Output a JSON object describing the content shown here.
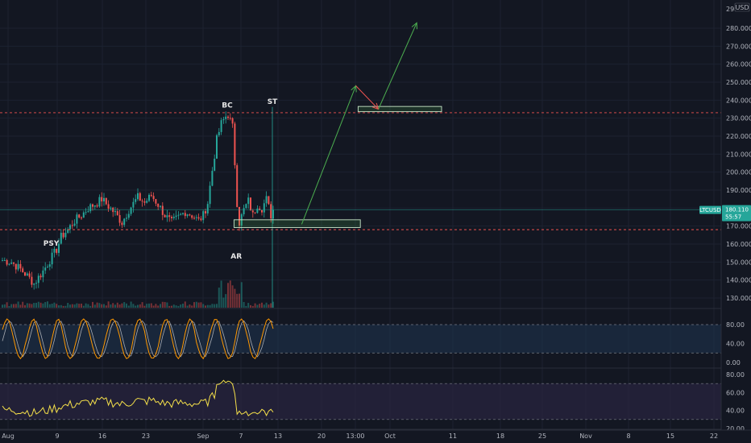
{
  "chart_data": {
    "type": "candlestick",
    "symbol": "LTCUSD",
    "currency": "USD",
    "last_price": "180.110",
    "countdown": "55:57",
    "colors": {
      "up": "#26a69a",
      "down": "#ef5350",
      "background": "#131722",
      "stoch_k": "#ff9800",
      "stoch_d": "#e5e5e5",
      "rsi": "#f5e04a",
      "arrow_up": "#4caf50",
      "arrow_down": "#ef5350",
      "stoch_band": "#1f3550",
      "rsi_band": "#2a2540"
    },
    "price_axis": {
      "ticks": [
        "130.000",
        "140.000",
        "150.000",
        "160.000",
        "170.000",
        "180.000",
        "190.000",
        "200.000",
        "210.000",
        "220.000",
        "230.000",
        "240.000",
        "250.000",
        "260.000",
        "270.000",
        "280.000"
      ],
      "top_partial": "29",
      "ylim": [
        124,
        298
      ]
    },
    "time_axis": {
      "labels": [
        "Aug",
        "9",
        "16",
        "23",
        "Sep",
        "7",
        "13",
        "20",
        "13:00",
        "Oct",
        "11",
        "18",
        "25",
        "Nov",
        "8",
        "15",
        "22"
      ]
    },
    "stoch_axis": {
      "ticks": [
        "80.00",
        "40.00",
        "0.00"
      ],
      "band": [
        20,
        80
      ]
    },
    "rsi_axis": {
      "ticks": [
        "80.00",
        "60.00",
        "40.00",
        "20.00"
      ],
      "band": [
        30,
        70
      ]
    },
    "levels": {
      "resistance": 233,
      "support": 168
    },
    "annotations": [
      {
        "label": "PSY",
        "price": 159,
        "bar": 22
      },
      {
        "label": "BC",
        "price": 236,
        "bar": 100
      },
      {
        "label": "AR",
        "price": 152,
        "bar": 104
      },
      {
        "label": "ST",
        "price": 238,
        "bar": 120
      }
    ],
    "zones": [
      {
        "name": "accumulation-range",
        "price_low": 169.2,
        "price_high": 173.5,
        "from_bar": 103,
        "to_bar": 159
      },
      {
        "name": "target-zone",
        "price_low": 233.6,
        "price_high": 236.5,
        "from_bar": 158,
        "to_bar": 195
      }
    ],
    "projection": [
      {
        "bar": 133,
        "price": 171
      },
      {
        "bar": 157,
        "price": 248
      },
      {
        "bar": 167,
        "price": 235
      },
      {
        "bar": 184,
        "price": 283
      }
    ],
    "ohlc_anchors": [
      [
        0,
        151
      ],
      [
        4,
        150
      ],
      [
        8,
        146
      ],
      [
        12,
        141
      ],
      [
        14,
        138
      ],
      [
        18,
        145
      ],
      [
        22,
        153
      ],
      [
        24,
        157
      ],
      [
        26,
        164
      ],
      [
        29,
        168
      ],
      [
        32,
        173
      ],
      [
        35,
        176
      ],
      [
        38,
        180
      ],
      [
        42,
        183
      ],
      [
        44,
        185
      ],
      [
        47,
        181
      ],
      [
        50,
        177
      ],
      [
        53,
        172
      ],
      [
        56,
        179
      ],
      [
        60,
        186
      ],
      [
        63,
        183
      ],
      [
        66,
        187
      ],
      [
        69,
        182
      ],
      [
        72,
        176
      ],
      [
        75,
        172
      ],
      [
        78,
        175
      ],
      [
        81,
        178
      ],
      [
        84,
        176
      ],
      [
        87,
        173
      ],
      [
        89,
        176
      ],
      [
        91,
        183
      ],
      [
        93,
        201
      ],
      [
        95,
        218
      ],
      [
        97,
        227
      ],
      [
        99,
        231
      ],
      [
        100,
        232
      ],
      [
        102,
        225
      ],
      [
        103,
        205
      ],
      [
        104,
        183
      ],
      [
        105,
        172
      ],
      [
        107,
        179
      ],
      [
        109,
        184
      ],
      [
        111,
        176
      ],
      [
        113,
        182
      ],
      [
        115,
        180
      ],
      [
        117,
        185
      ],
      [
        119,
        176
      ],
      [
        120,
        179
      ]
    ]
  }
}
